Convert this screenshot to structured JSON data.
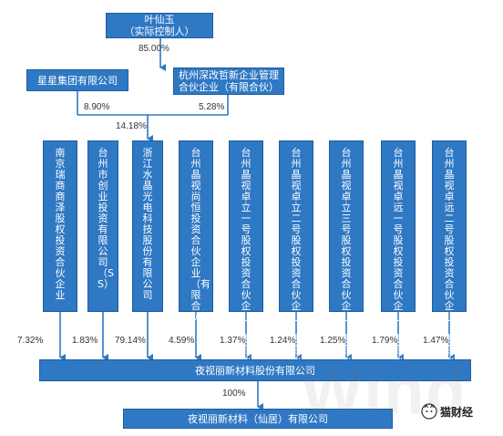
{
  "top_owner": {
    "line1": "叶仙玉",
    "line2": "（实际控制人）"
  },
  "edges": {
    "top_to_xingxing": "85.00%",
    "xingxing_to_zhejiang": "8.90%",
    "hangzhou_to_zhejiang": "5.28%",
    "combined_to_zhejiang": "14.18%",
    "subsidiary": "100%"
  },
  "xingxing": "星星集团有限公司",
  "hangzhou": {
    "line1": "杭州深改哲新企业管理",
    "line2": "合伙企业（有限合伙）"
  },
  "shareholders": [
    {
      "name": "南京瑞商商泽股权投资合伙企业",
      "pct": "7.32%"
    },
    {
      "name": "台州市创业投资有限公司（SS）",
      "pct": "1.83%"
    },
    {
      "name": "浙江水晶光电科技股份有限公司",
      "pct": "79.14%"
    },
    {
      "name": "台州晶视尚恒投资合伙企业（有限合伙）",
      "pct": "4.59%"
    },
    {
      "name": "台州晶视卓立一号股权投资合伙企业（有限合伙）",
      "pct": "1.37%"
    },
    {
      "name": "台州晶视卓立二号股权投资合伙企业（有限合伙）",
      "pct": "1.24%"
    },
    {
      "name": "台州晶视卓立三号股权投资合伙企业（有限合伙）",
      "pct": "1.25%"
    },
    {
      "name": "台州晶视卓远一号股权投资合伙企业（有限合伙）",
      "pct": "1.79%"
    },
    {
      "name": "台州晶视卓远二号股权投资合伙企业（有限合伙）",
      "pct": "1.47%"
    }
  ],
  "main_company": "夜视丽新材料股份有限公司",
  "sub_company": "夜视丽新材料（仙居）有限公司",
  "watermark": "Wind",
  "brand": "猫财经",
  "colors": {
    "box": "#2f78c4",
    "line": "#2f78c4"
  }
}
